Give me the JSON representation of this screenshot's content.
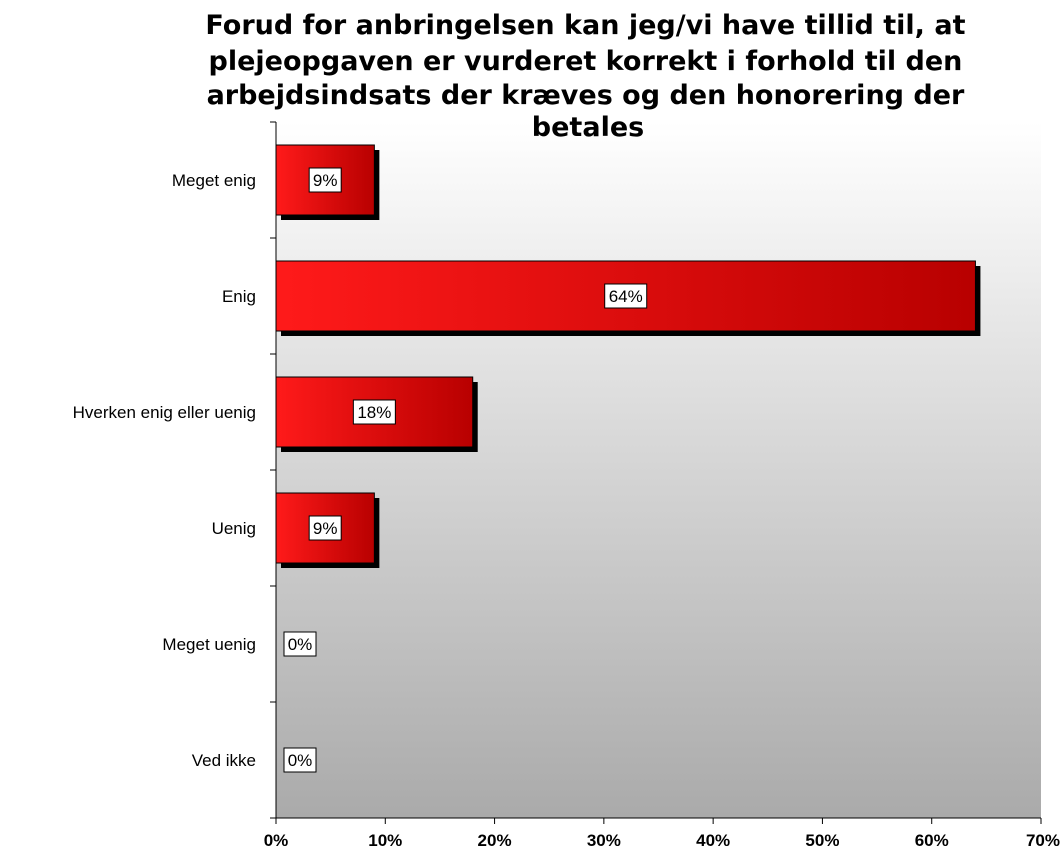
{
  "chart_data": {
    "type": "bar",
    "orientation": "horizontal",
    "title_lines": [
      "Forud for anbringelsen kan jeg/vi have tillid til, at",
      "plejeopgaven er vurderet korrekt i forhold til den",
      "arbejdsindsats der kræves og den honorering der",
      "betales"
    ],
    "categories": [
      "Meget enig",
      "Enig",
      "Hverken enig eller uenig",
      "Uenig",
      "Meget uenig",
      "Ved ikke"
    ],
    "values": [
      9,
      64,
      18,
      9,
      0,
      0
    ],
    "data_labels": [
      "9%",
      "64%",
      "18%",
      "9%",
      "0%",
      "0%"
    ],
    "x_ticks": [
      "0%",
      "10%",
      "20%",
      "30%",
      "40%",
      "50%",
      "60%",
      "70%"
    ],
    "xlim": [
      0,
      70
    ],
    "grid": false,
    "legend": "none",
    "colors": {
      "bar_light": "#ff1a1a",
      "bar_dark": "#b80000",
      "bar_shadow": "#000000",
      "plot_bg_top": "#ffffff",
      "plot_bg_bottom": "#aaaaaa"
    }
  }
}
